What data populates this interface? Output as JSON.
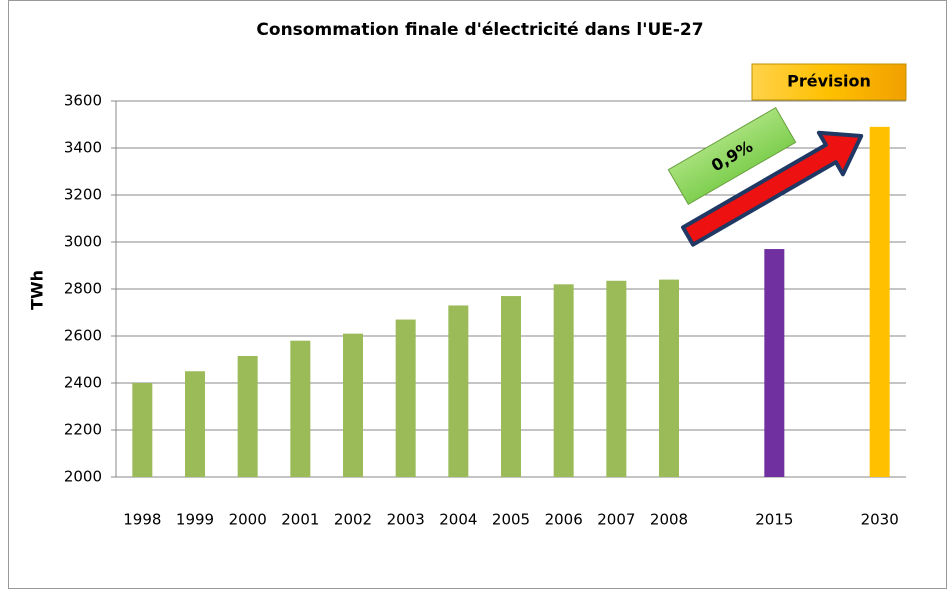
{
  "chart_data": {
    "type": "bar",
    "title": "Consommation finale d'électricité dans l'UE-27",
    "y_label": "TWh",
    "categories": [
      "1998",
      "1999",
      "2000",
      "2001",
      "2002",
      "2003",
      "2004",
      "2005",
      "2006",
      "2007",
      "2008",
      null,
      "2015",
      null,
      "2030"
    ],
    "values": [
      2400,
      2450,
      2515,
      2580,
      2610,
      2670,
      2730,
      2770,
      2820,
      2835,
      2840,
      null,
      2970,
      null,
      3490
    ],
    "colors": [
      "#9bbb59",
      "#9bbb59",
      "#9bbb59",
      "#9bbb59",
      "#9bbb59",
      "#9bbb59",
      "#9bbb59",
      "#9bbb59",
      "#9bbb59",
      "#9bbb59",
      "#9bbb59",
      null,
      "#7030a0",
      null,
      "#ffc000"
    ],
    "ylim": [
      2000,
      3600
    ],
    "yticks": [
      2000,
      2200,
      2400,
      2600,
      2800,
      3000,
      3200,
      3400,
      3600
    ],
    "grid": true,
    "annotations": {
      "forecast": "Prévision",
      "growth": "0,9%"
    }
  }
}
